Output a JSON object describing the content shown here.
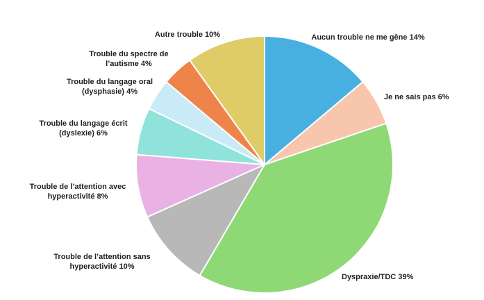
{
  "chart_data": {
    "type": "pie",
    "categories": [
      "Aucun trouble ne me gêne",
      "Je ne sais pas",
      "Dyspraxie/TDC",
      "Trouble de l’attention sans hyperactivité",
      "Trouble de l’attention avec hyperactivité",
      "Trouble du langage écrit (dyslexie)",
      "Trouble du langage oral (dysphasie)",
      "Trouble du spectre de l’autisme",
      "Autre trouble"
    ],
    "values": [
      14,
      6,
      39,
      10,
      8,
      6,
      4,
      4,
      10
    ],
    "value_labels": [
      "14%",
      "6%",
      "39%",
      "10%",
      "8%",
      "6%",
      "4%",
      "4%",
      "10%"
    ],
    "colors": [
      "#47b0e0",
      "#f7c6ad",
      "#8fd876",
      "#b8b8b8",
      "#eab2e4",
      "#8fe3db",
      "#c9ebf8",
      "#ef844a",
      "#dfcc66"
    ]
  }
}
